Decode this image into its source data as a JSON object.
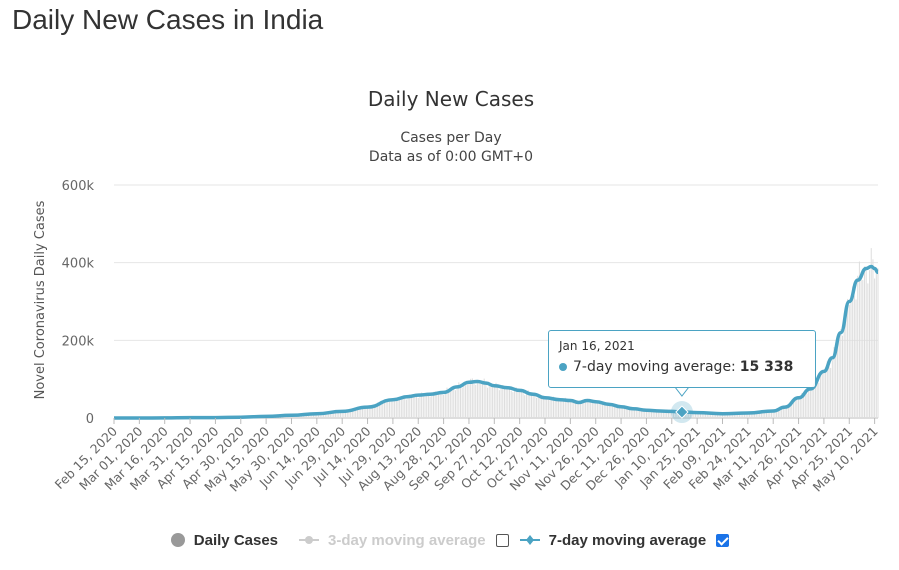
{
  "page": {
    "title": "Daily New Cases in India"
  },
  "colors": {
    "series_line": "#4ba3c3",
    "bars": "#dddddd",
    "grid": "#e6e6e6",
    "axis": "#666666"
  },
  "chart_data": {
    "type": "line",
    "title": "Daily New Cases",
    "subtitle_lines": [
      "Cases per Day",
      "Data as of 0:00 GMT+0"
    ],
    "ylabel": "Novel Coronavirus Daily Cases",
    "ylim": [
      0,
      600000
    ],
    "yticks": [
      {
        "value": 0,
        "label": "0"
      },
      {
        "value": 200000,
        "label": "200k"
      },
      {
        "value": 400000,
        "label": "400k"
      },
      {
        "value": 600000,
        "label": "600k"
      }
    ],
    "x_tick_labels": [
      "Feb 15, 2020",
      "Mar 01, 2020",
      "Mar 16, 2020",
      "Mar 31, 2020",
      "Apr 15, 2020",
      "Apr 30, 2020",
      "May 15, 2020",
      "May 30, 2020",
      "Jun 14, 2020",
      "Jun 29, 2020",
      "Jul 14, 2020",
      "Jul 29, 2020",
      "Aug 13, 2020",
      "Aug 28, 2020",
      "Sep 12, 2020",
      "Sep 27, 2020",
      "Oct 12, 2020",
      "Oct 27, 2020",
      "Nov 11, 2020",
      "Nov 26, 2020",
      "Dec 11, 2020",
      "Dec 26, 2020",
      "Jan 10, 2021",
      "Jan 25, 2021",
      "Feb 09, 2021",
      "Feb 24, 2021",
      "Mar 11, 2021",
      "Mar 26, 2021",
      "Apr 10, 2021",
      "Apr 25, 2021",
      "May 10, 2021"
    ],
    "grid": true,
    "legend_placement": "bottom-center",
    "series": [
      {
        "name": "Daily Cases",
        "display": "bars",
        "visible": true
      },
      {
        "name": "3-day moving average",
        "display": "line",
        "visible": false
      },
      {
        "name": "7-day moving average",
        "display": "line",
        "visible": true,
        "x": [
          "Feb 15, 2020",
          "Mar 01, 2020",
          "Mar 16, 2020",
          "Mar 31, 2020",
          "Apr 15, 2020",
          "Apr 30, 2020",
          "May 15, 2020",
          "May 30, 2020",
          "Jun 14, 2020",
          "Jun 29, 2020",
          "Jul 14, 2020",
          "Jul 29, 2020",
          "Aug 07, 2020",
          "Aug 13, 2020",
          "Aug 20, 2020",
          "Aug 28, 2020",
          "Sep 05, 2020",
          "Sep 12, 2020",
          "Sep 17, 2020",
          "Sep 22, 2020",
          "Sep 27, 2020",
          "Oct 05, 2020",
          "Oct 12, 2020",
          "Oct 20, 2020",
          "Oct 27, 2020",
          "Nov 05, 2020",
          "Nov 11, 2020",
          "Nov 16, 2020",
          "Nov 21, 2020",
          "Nov 26, 2020",
          "Dec 04, 2020",
          "Dec 11, 2020",
          "Dec 18, 2020",
          "Dec 26, 2020",
          "Jan 03, 2021",
          "Jan 10, 2021",
          "Jan 16, 2021",
          "Jan 25, 2021",
          "Feb 09, 2021",
          "Feb 24, 2021",
          "Mar 11, 2021",
          "Mar 18, 2021",
          "Mar 26, 2021",
          "Apr 02, 2021",
          "Apr 10, 2021",
          "Apr 15, 2021",
          "Apr 20, 2021",
          "Apr 25, 2021",
          "Apr 30, 2021",
          "May 05, 2021",
          "May 08, 2021",
          "May 10, 2021",
          "May 12, 2021"
        ],
        "values": [
          0,
          0,
          200,
          1000,
          1000,
          2000,
          4000,
          7000,
          11000,
          17000,
          28000,
          47000,
          55000,
          59000,
          61000,
          66000,
          80000,
          92000,
          94000,
          90000,
          83000,
          78000,
          71000,
          61000,
          52000,
          47000,
          45000,
          40000,
          45000,
          42000,
          35000,
          29000,
          24000,
          20000,
          18000,
          17000,
          15338,
          14000,
          11000,
          13000,
          18000,
          28000,
          52000,
          75000,
          120000,
          155000,
          220000,
          300000,
          355000,
          385000,
          390000,
          385000,
          375000
        ]
      }
    ],
    "tooltip": {
      "date": "Jan 16, 2021",
      "series": "7-day moving average",
      "value_text": "15 338",
      "label": "7-day moving average:"
    }
  }
}
